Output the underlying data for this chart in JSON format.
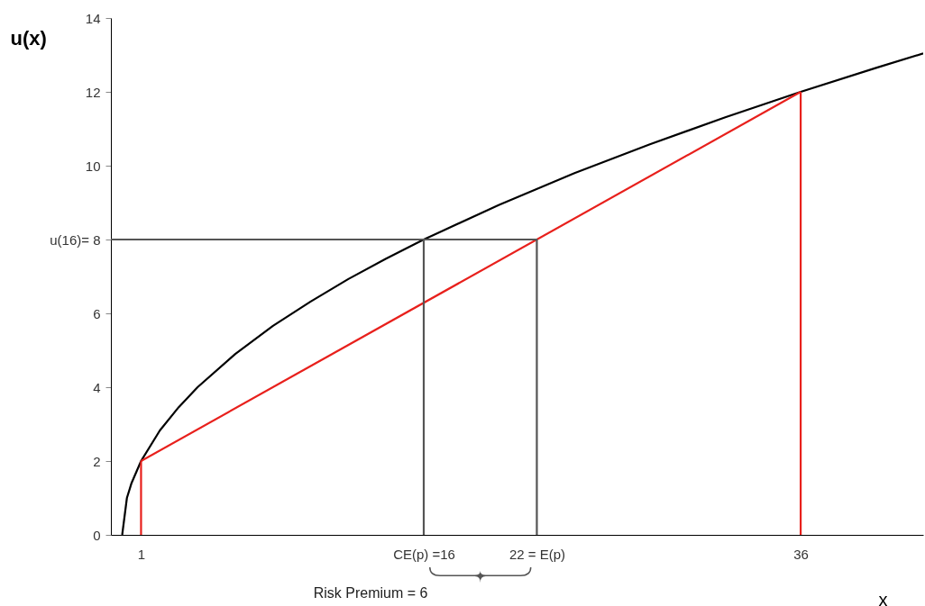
{
  "chart_data": {
    "type": "line",
    "xlabel": "x",
    "ylabel": "u(x)",
    "xlim": [
      -0.6,
      42.5
    ],
    "ylim": [
      0,
      14
    ],
    "xticks": [
      {
        "value": 1,
        "label": "1"
      },
      {
        "value": 16,
        "label": "CE(p) =16"
      },
      {
        "value": 22,
        "label": "22 = E(p)"
      },
      {
        "value": 36,
        "label": "36"
      }
    ],
    "yticks": [
      0,
      2,
      4,
      6,
      {
        "value": 8,
        "label": "u(16)= 8"
      },
      10,
      12,
      14
    ],
    "grid": false,
    "marker": "none",
    "line_style": "solid",
    "series": [
      {
        "color": "#000000",
        "x": [
          0,
          0.25,
          0.5,
          1,
          2,
          3,
          4,
          6,
          8,
          10,
          12,
          14,
          16,
          20,
          24,
          28,
          32,
          36,
          40,
          42.5
        ],
        "values": [
          0,
          1,
          1.41,
          2,
          2.83,
          3.46,
          4,
          4.9,
          5.66,
          6.32,
          6.93,
          7.48,
          8,
          8.94,
          9.8,
          10.58,
          11.31,
          12,
          12.65,
          13.04
        ]
      },
      {
        "color": "#e8201c",
        "x": [
          1,
          36
        ],
        "values": [
          2,
          12
        ]
      },
      {
        "color": "#e8201c",
        "x": [
          1,
          1
        ],
        "values": [
          0,
          2
        ]
      },
      {
        "color": "#e8201c",
        "x": [
          36,
          36
        ],
        "values": [
          0,
          12
        ]
      },
      {
        "color": "#555555",
        "x": [
          -0.6,
          22,
          22
        ],
        "values": [
          8,
          8,
          0
        ]
      },
      {
        "color": "#555555",
        "x": [
          16,
          16
        ],
        "values": [
          8,
          0
        ]
      }
    ],
    "annotations": [
      "Risk Premium = 6"
    ]
  }
}
